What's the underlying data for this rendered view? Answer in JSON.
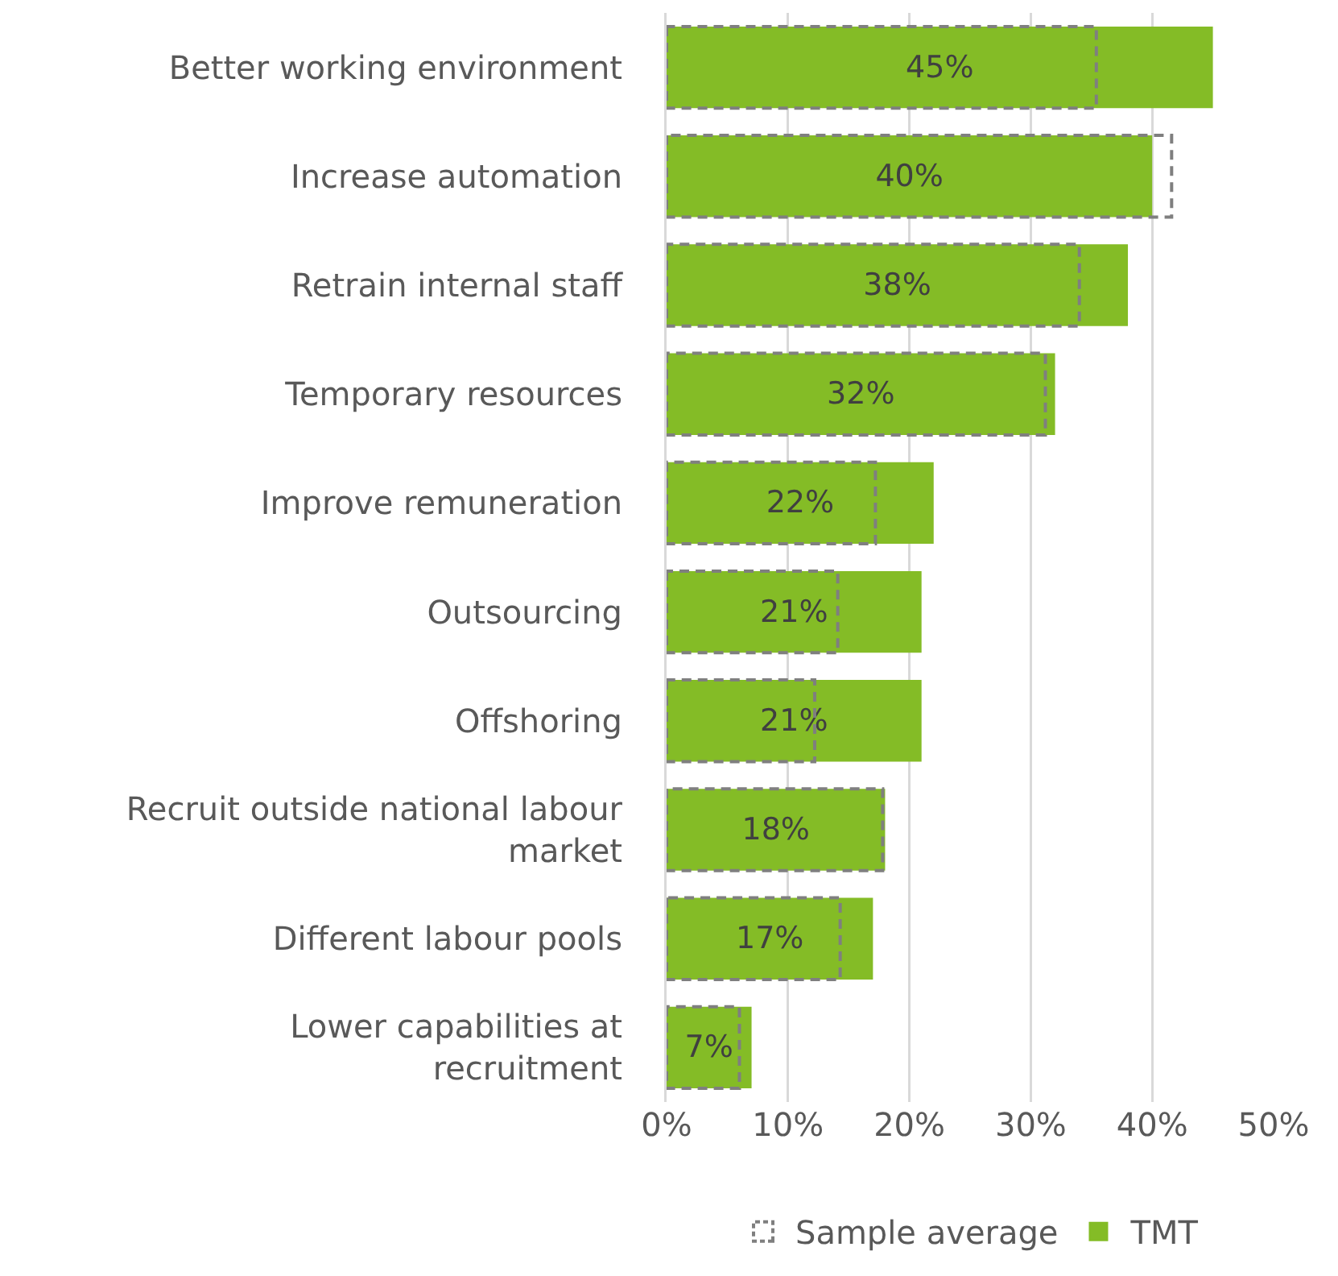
{
  "chart_data": {
    "type": "bar",
    "orientation": "horizontal",
    "categories": [
      "Better working environment",
      "Increase automation",
      "Retrain internal staff",
      "Temporary resources",
      "Improve remuneration",
      "Outsourcing",
      "Offshoring",
      "Recruit outside national labour market",
      "Different labour pools",
      "Lower capabilities at recruitment"
    ],
    "series": [
      {
        "name": "TMT",
        "color": "#84bc26",
        "values": [
          45,
          40,
          38,
          32,
          22,
          21,
          21,
          18,
          17,
          7
        ],
        "value_labels": [
          "45%",
          "40%",
          "38%",
          "32%",
          "22%",
          "21%",
          "21%",
          "18%",
          "17%",
          "7%"
        ]
      },
      {
        "name": "Sample average",
        "color": "#7f7f7f",
        "line_style": "dashed",
        "values": [
          35.4,
          41.6,
          34,
          31.2,
          17.2,
          14.1,
          12.2,
          17.8,
          14.3,
          6
        ]
      }
    ],
    "xlim": [
      0,
      50
    ],
    "xticks": [
      {
        "value": 0,
        "label": "0%"
      },
      {
        "value": 10,
        "label": "10%"
      },
      {
        "value": 20,
        "label": "20%"
      },
      {
        "value": 30,
        "label": "30%"
      },
      {
        "value": 40,
        "label": "40%"
      },
      {
        "value": 50,
        "label": "50%"
      }
    ],
    "grid": "x",
    "legend": "bottom"
  }
}
